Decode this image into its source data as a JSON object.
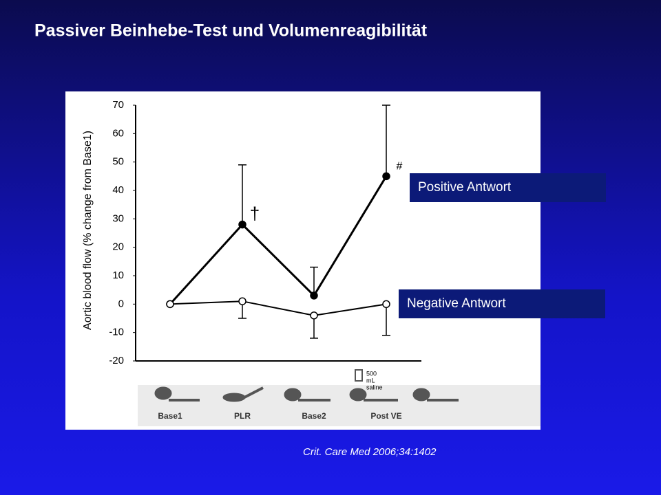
{
  "slide": {
    "title": "Passiver Beinhebe-Test und Volumenreagibilität",
    "citation": "Crit. Care Med 2006;34:1402"
  },
  "chart_data": {
    "type": "line",
    "y_label": "Aortic blood flow (% change from Base1)",
    "categories": [
      "Base1",
      "PLR",
      "Base2",
      "Post VE"
    ],
    "series": [
      {
        "name": "Positive Antwort",
        "color": "#000000",
        "marker": "filled",
        "values": [
          0,
          28,
          3,
          45
        ],
        "errors": [
          null,
          21,
          10,
          25
        ],
        "error_direction": "up"
      },
      {
        "name": "Negative Antwort",
        "color": "#000000",
        "marker": "open",
        "values": [
          0,
          1,
          -4,
          0
        ],
        "errors": [
          null,
          6,
          8,
          11
        ],
        "error_direction": "down"
      }
    ],
    "annotations": [
      "†",
      "#"
    ],
    "infusion_label": [
      "500",
      "mL",
      "saline"
    ],
    "ylim": [
      -20,
      70
    ],
    "yticks": [
      -20,
      -10,
      0,
      10,
      20,
      30,
      40,
      50,
      60,
      70
    ]
  }
}
